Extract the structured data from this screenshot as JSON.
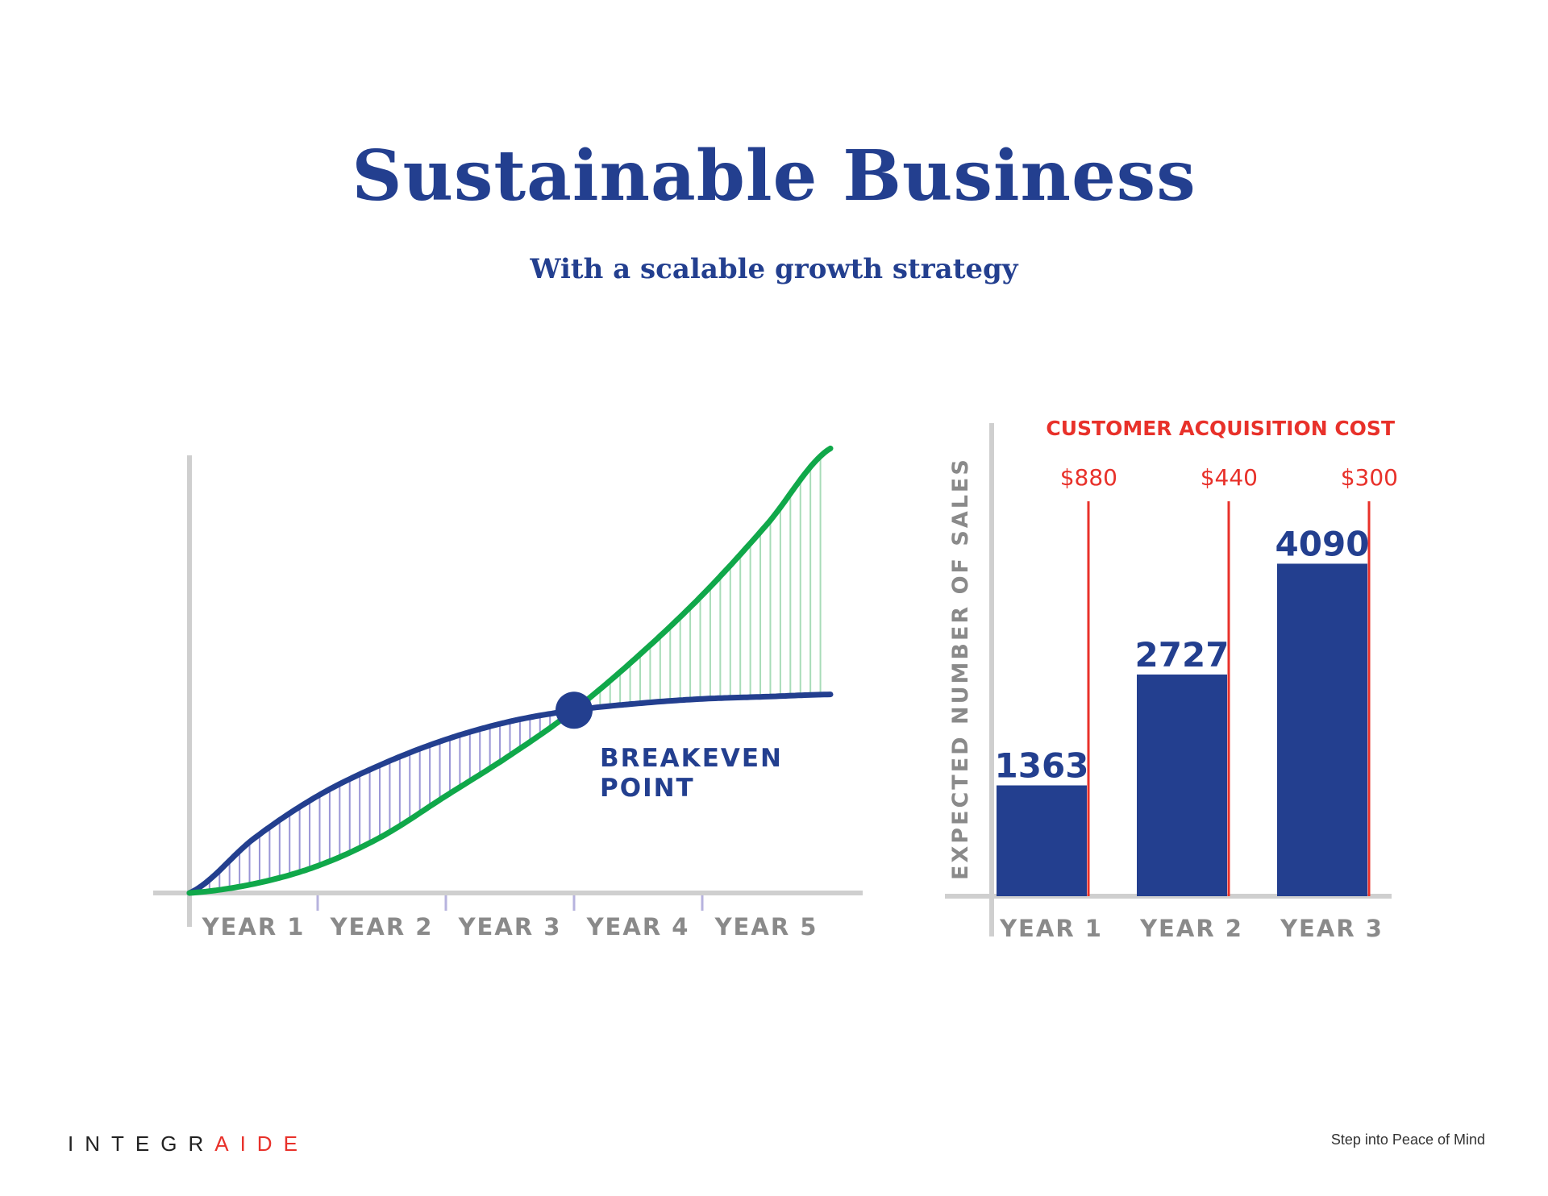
{
  "page": {
    "title": "Sustainable Business",
    "subtitle": "With a scalable growth strategy"
  },
  "colors": {
    "navy": "#233f8f",
    "green": "#10a84a",
    "red": "#e8312a",
    "axis": "#cfcfcf",
    "label_gray": "#8a8a8a"
  },
  "chart_data": [
    {
      "type": "line",
      "title": "",
      "xlabel": "",
      "ylabel": "",
      "categories": [
        "YEAR 1",
        "YEAR 2",
        "YEAR 3",
        "YEAR 4",
        "YEAR 5"
      ],
      "x": [
        0,
        0.5,
        1,
        1.5,
        2,
        2.5,
        3,
        3.5,
        4,
        4.5,
        5
      ],
      "series": [
        {
          "name": "",
          "color": "navy",
          "values": [
            0,
            24,
            43,
            57,
            68,
            76,
            81,
            84,
            86,
            87,
            88
          ]
        },
        {
          "name": "",
          "color": "green",
          "values": [
            0,
            4,
            12,
            25,
            43,
            61,
            81,
            105,
            132,
            163,
            197
          ]
        }
      ],
      "ylim": [
        0,
        200
      ],
      "annotations": [
        {
          "label_lines": [
            "BREAKEVEN",
            "POINT"
          ],
          "x": 3,
          "y": 81
        }
      ],
      "grid": false
    },
    {
      "type": "bar",
      "title": "",
      "ylabel": "EXPECTED NUMBER OF SALES",
      "xlabel": "",
      "categories": [
        "YEAR 1",
        "YEAR 2",
        "YEAR 3"
      ],
      "values": [
        1363,
        2727,
        4090
      ],
      "ylim": [
        0,
        5750
      ],
      "secondary": {
        "label": "CUSTOMER ACQUISITION COST",
        "values": [
          "$880",
          "$440",
          "$300"
        ]
      },
      "grid": false
    }
  ],
  "footer": {
    "brand_main": "INTEGR",
    "brand_accent": "AIDE",
    "tagline": "Step into Peace of Mind"
  }
}
